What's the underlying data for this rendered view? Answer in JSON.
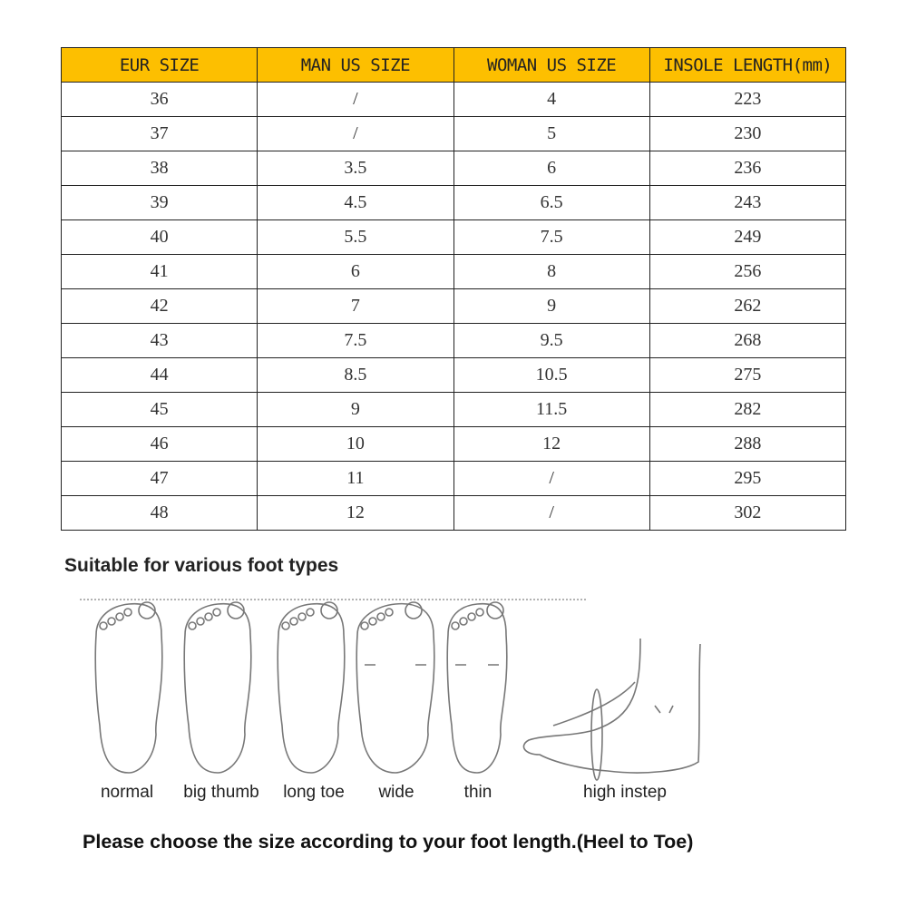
{
  "size_table": {
    "headers": [
      "EUR SIZE",
      "MAN US SIZE",
      "WOMAN US SIZE",
      "INSOLE LENGTH(mm)"
    ],
    "header_color": "#fdbf00",
    "rows": [
      [
        "36",
        "/",
        "4",
        "223"
      ],
      [
        "37",
        "/",
        "5",
        "230"
      ],
      [
        "38",
        "3.5",
        "6",
        "236"
      ],
      [
        "39",
        "4.5",
        "6.5",
        "243"
      ],
      [
        "40",
        "5.5",
        "7.5",
        "249"
      ],
      [
        "41",
        "6",
        "8",
        "256"
      ],
      [
        "42",
        "7",
        "9",
        "262"
      ],
      [
        "43",
        "7.5",
        "9.5",
        "268"
      ],
      [
        "44",
        "8.5",
        "10.5",
        "275"
      ],
      [
        "45",
        "9",
        "11.5",
        "282"
      ],
      [
        "46",
        "10",
        "12",
        "288"
      ],
      [
        "47",
        "11",
        "/",
        "295"
      ],
      [
        "48",
        "12",
        "/",
        "302"
      ]
    ]
  },
  "foot_types": {
    "title": "Suitable for various foot types",
    "types": [
      "normal",
      "big thumb",
      "long toe",
      "wide",
      "thin",
      "high instep"
    ]
  },
  "instruction": "Please choose the size according to your foot length.(Heel to Toe)"
}
